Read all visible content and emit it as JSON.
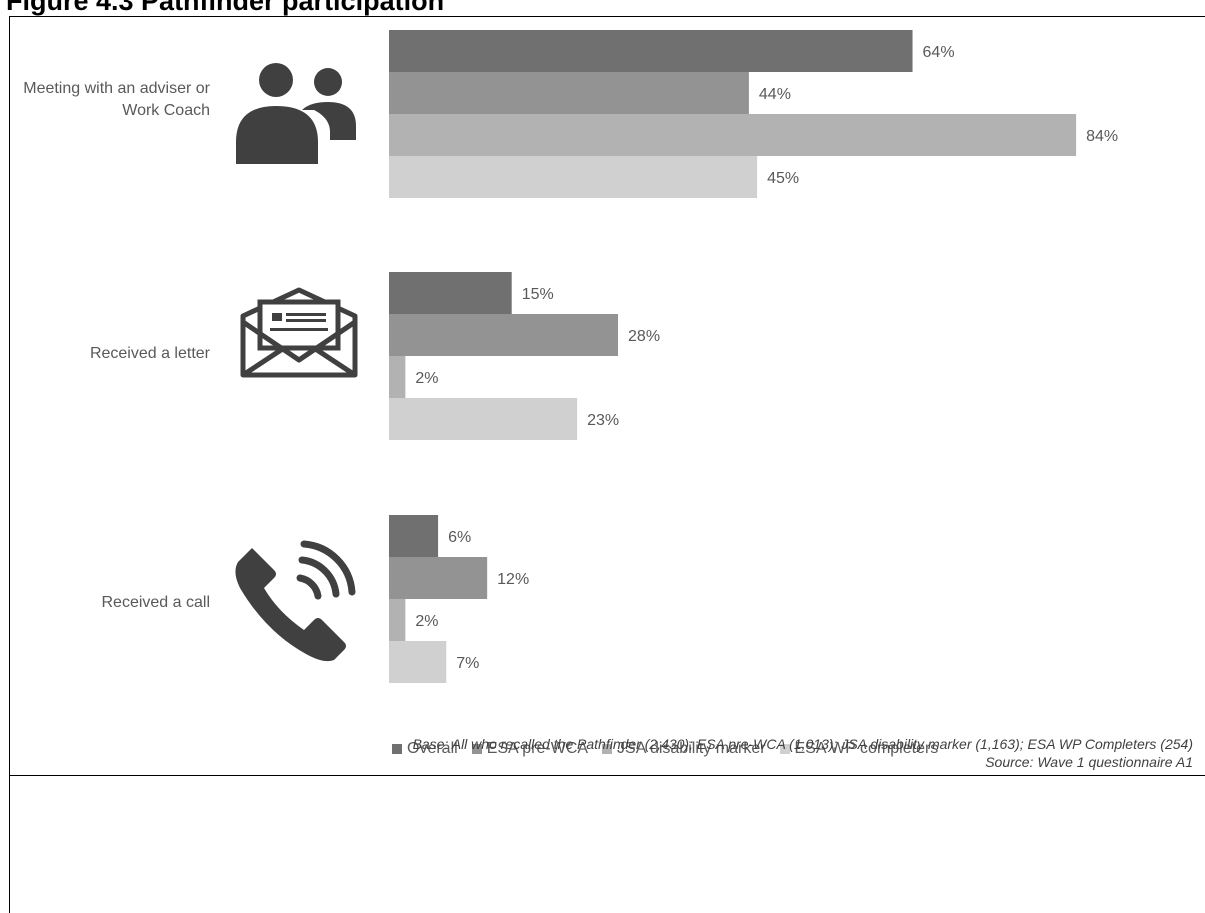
{
  "title": "Figure 4.3 Pathfinder participation",
  "chart_data": {
    "type": "bar",
    "orientation": "horizontal",
    "categories": [
      "Meeting with an adviser or Work Coach",
      "Received a letter",
      "Received a call"
    ],
    "series": [
      {
        "name": "Overall",
        "values": [
          64,
          15,
          6
        ],
        "color": "#707070"
      },
      {
        "name": "ESA pre-WCA",
        "values": [
          44,
          28,
          12
        ],
        "color": "#939393"
      },
      {
        "name": "JSA disability marker",
        "values": [
          84,
          2,
          2
        ],
        "color": "#b2b2b2"
      },
      {
        "name": "ESA WP completers",
        "values": [
          45,
          23,
          7
        ],
        "color": "#d0d0d0"
      }
    ],
    "value_suffix": "%",
    "xlim": [
      0,
      100
    ],
    "grid": false,
    "legend_position": "bottom",
    "icons": [
      "people-icon",
      "envelope-letter-icon",
      "phone-call-icon"
    ]
  },
  "notes": {
    "base": "Base: All who recalled the Pathfinder (2,430); ESA pre-WCA (1,013); JSA disability marker (1,163); ESA WP Completers (254)",
    "source": "Source: Wave 1 questionnaire A1"
  }
}
